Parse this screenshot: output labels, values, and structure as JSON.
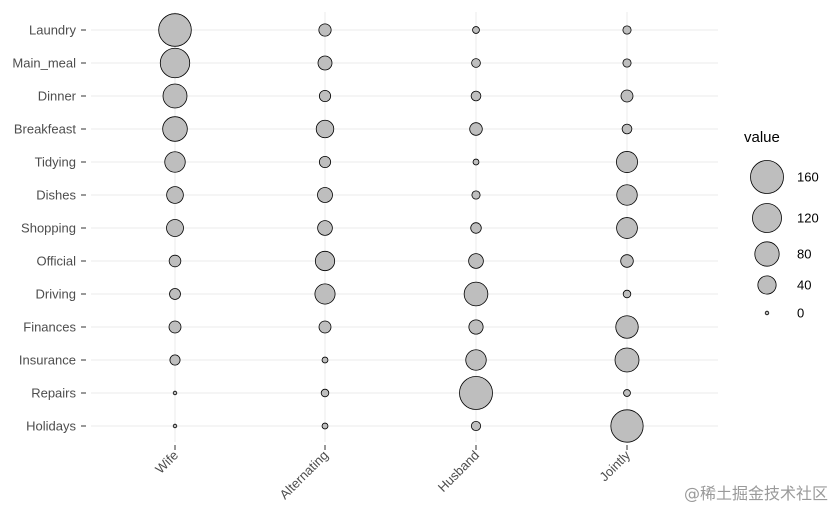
{
  "chart_data": {
    "type": "scatter",
    "x": [
      "Wife",
      "Alternating",
      "Husband",
      "Jointly"
    ],
    "y": [
      "Laundry",
      "Main_meal",
      "Dinner",
      "Breakfeast",
      "Tidying",
      "Dishes",
      "Shopping",
      "Official",
      "Driving",
      "Finances",
      "Insurance",
      "Repairs",
      "Holidays"
    ],
    "values": [
      [
        156,
        14,
        2,
        4
      ],
      [
        124,
        20,
        5,
        4
      ],
      [
        77,
        11,
        7,
        13
      ],
      [
        82,
        36,
        15,
        7
      ],
      [
        53,
        11,
        1,
        57
      ],
      [
        32,
        24,
        4,
        53
      ],
      [
        33,
        23,
        9,
        55
      ],
      [
        12,
        46,
        23,
        15
      ],
      [
        10,
        51,
        75,
        3
      ],
      [
        13,
        13,
        21,
        66
      ],
      [
        8,
        1,
        53,
        77
      ],
      [
        0,
        3,
        160,
        2
      ],
      [
        0,
        1,
        6,
        153
      ]
    ],
    "legend": {
      "title": "value",
      "labels": [
        "160",
        "120",
        "80",
        "40",
        "0"
      ],
      "values": [
        160,
        120,
        80,
        40,
        0
      ],
      "position": "right"
    },
    "grid": true,
    "colors": {
      "fill": "#bebebe",
      "stroke": "#000000",
      "grid": "#ebebeb"
    }
  },
  "watermark": "@稀土掘金技术社区"
}
